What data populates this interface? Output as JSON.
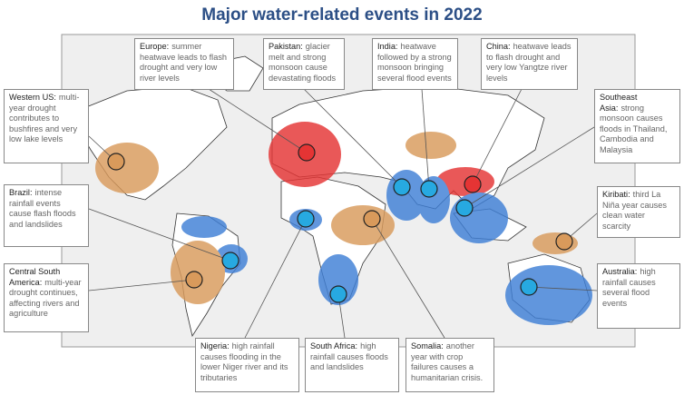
{
  "title": "Major water-related events in 2022",
  "callouts": [
    {
      "region": "Europe:",
      "text": "summer heatwave leads to flash drought and very low river levels"
    },
    {
      "region": "Pakistan:",
      "text": "glacier melt and strong monsoon cause devastating floods"
    },
    {
      "region": "India:",
      "text": "heatwave followed by a strong monsoon bringing several flood events"
    },
    {
      "region": "China:",
      "text": "heatwave leads to flash drought and very low Yangtze river levels"
    },
    {
      "region": "Southeast Asia:",
      "text": "strong monsoon causes floods in Thailand, Cambodia and Malaysia"
    },
    {
      "region": "Kiribati:",
      "text": "third La Niña year causes clean water scarcity"
    },
    {
      "region": "Australia:",
      "text": "high rainfall causes several flood events"
    },
    {
      "region": "Western US:",
      "text": "multi-year drought contributes to bushfires and very low lake levels"
    },
    {
      "region": "Brazil:",
      "text": "intense rainfall events cause flash floods and landslides"
    },
    {
      "region": "Central South America:",
      "text": "multi-year drought continues, affecting rivers and agriculture"
    },
    {
      "region": "Nigeria:",
      "text": "high rainfall causes flooding in the lower Niger river and its tributaries"
    },
    {
      "region": "South Africa:",
      "text": "high rainfall causes floods and landslides"
    },
    {
      "region": "Somalia:",
      "text": "another year with crop failures causes a humanitarian crisis."
    }
  ]
}
